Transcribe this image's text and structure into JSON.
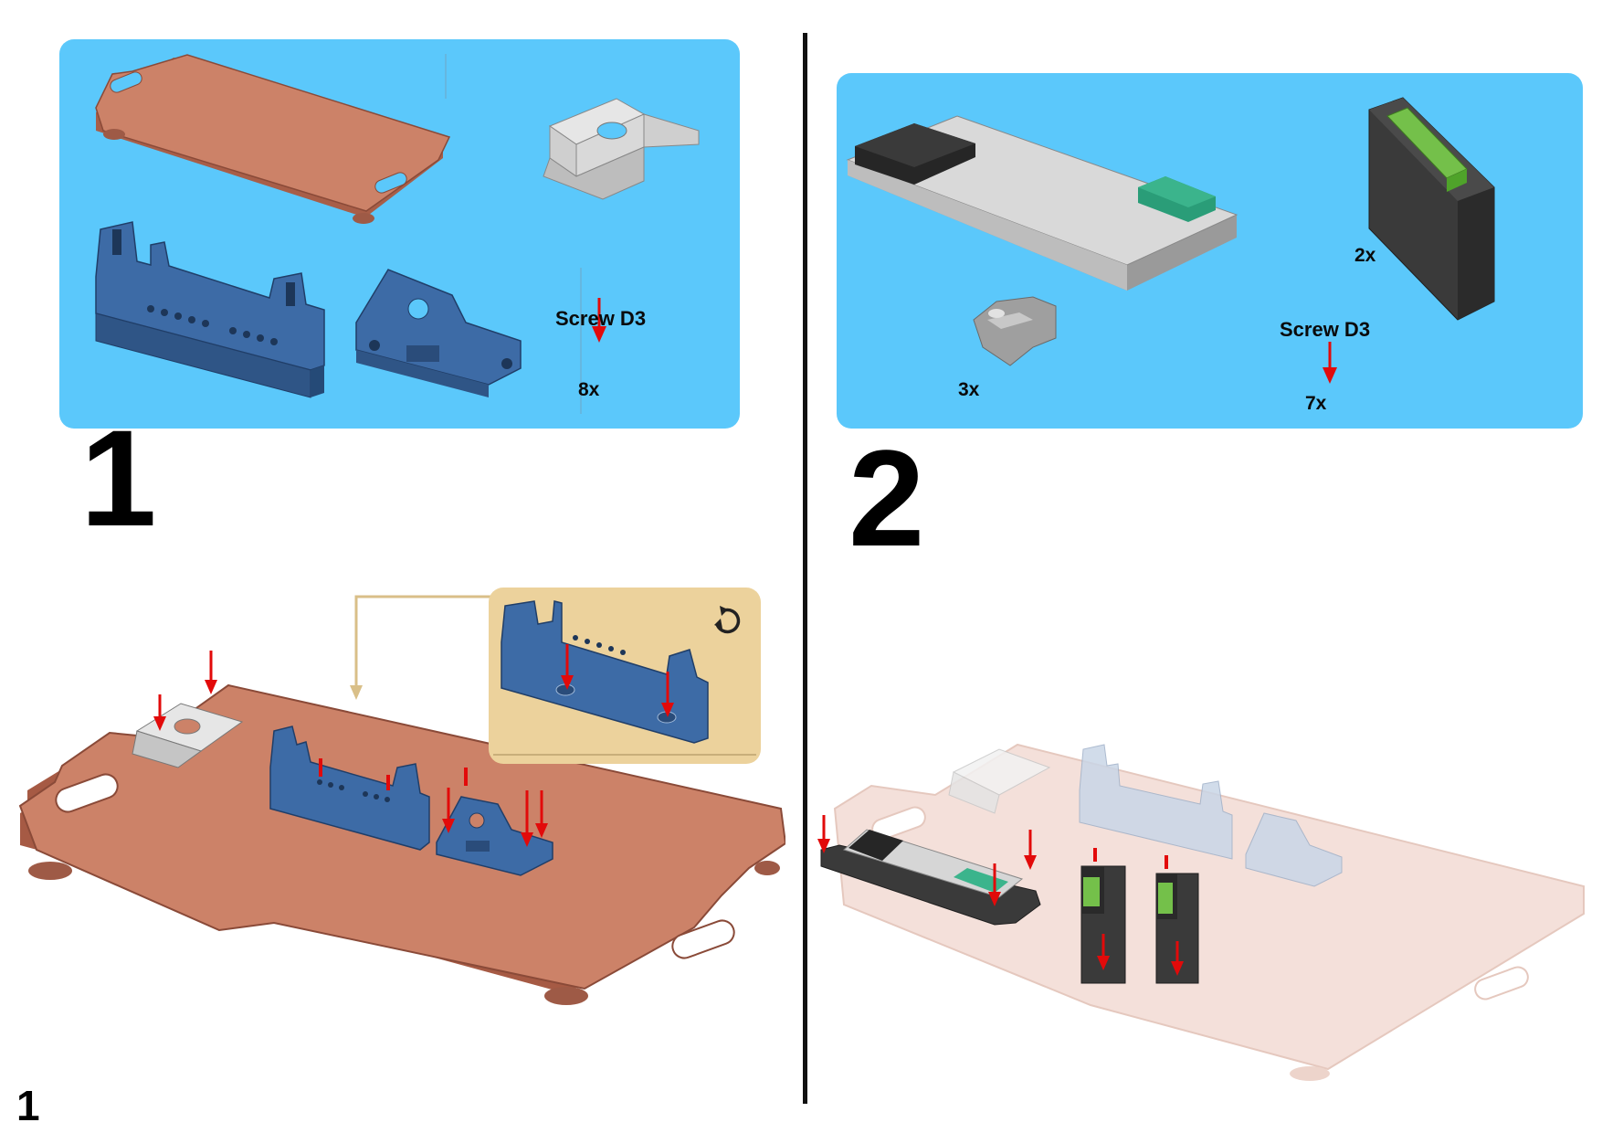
{
  "step1": {
    "number": "1",
    "substep": "1",
    "parts": {
      "screw_label": "Screw D3",
      "screw_count": "8x"
    },
    "callout_icon": "rotate-icon"
  },
  "step2": {
    "number": "2",
    "parts": {
      "screw_label": "Screw D3",
      "screw_count": "7x",
      "block_count": "2x",
      "clip_count": "3x"
    }
  },
  "colors": {
    "panel": "#5bc8fb",
    "base_plate": "#c98068",
    "bracket_blue": "#3d6ba6",
    "callout_bg": "#ecd29c",
    "arrow": "#e20a0a",
    "green": "#3aae8a"
  }
}
